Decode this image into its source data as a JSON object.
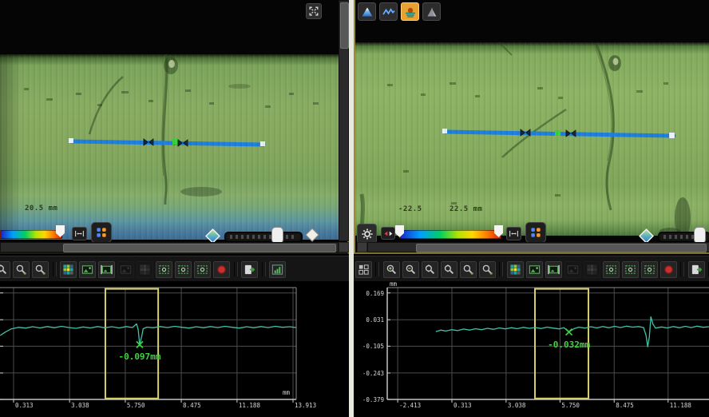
{
  "left_panel": {
    "scale_label": "20.5 mm",
    "viewer_controls": [
      "expand-view",
      "color-scale-handle",
      "range-fit",
      "palette",
      "height-marker",
      "opacity-slider",
      "compare-marker"
    ],
    "toolbar_icons": [
      "zoom-fit",
      "zoom-area",
      "zoom-area-alt",
      "pixel-view",
      "image-view",
      "image-fit",
      "overlay-disabled",
      "compare-disabled",
      "box-zoom",
      "box-zoom-in",
      "box-zoom-out",
      "record",
      "export",
      "profile-chart"
    ]
  },
  "right_panel": {
    "scale_min_label": "-22.5",
    "scale_max_label": "22.5 mm",
    "view_mode_icons": [
      "height-map",
      "profile-wave",
      "color-layers",
      "shape-3d"
    ],
    "active_view_mode": "color-layers",
    "viewer_controls": [
      "settings-gear",
      "swap-range",
      "color-scale-min-handle",
      "color-scale-max-handle",
      "range-fit",
      "palette",
      "height-marker",
      "opacity-slider"
    ],
    "toolbar_icons": [
      "tile-view",
      "zoom-in",
      "zoom-out",
      "zoom-fit",
      "zoom-fit-alt",
      "zoom-area",
      "zoom-area-alt",
      "pixel-view",
      "image-view",
      "image-fit",
      "overlay-disabled",
      "compare-disabled",
      "box-zoom",
      "box-zoom-in",
      "box-zoom-out",
      "record",
      "export",
      "profile-chart"
    ]
  },
  "chart_data": [
    {
      "id": "left_profile",
      "type": "line",
      "title": "",
      "xlabel": "mm",
      "ylabel": "mm",
      "unit": "mm",
      "unit_pos": "x-end",
      "xlim": [
        -0.3476,
        14.068
      ],
      "ylim": [
        -0.379,
        0.1965
      ],
      "grid": true,
      "frame": [
        "top",
        "bottom",
        "right"
      ],
      "x_ticks": {
        "values": [
          0.313,
          3.038,
          5.75,
          8.475,
          11.188,
          13.913
        ],
        "labels": [
          "0.313",
          "3.038",
          "5.750",
          "8.475",
          "11.188",
          "13.913"
        ]
      },
      "y_ticks": {
        "values": [
          0.169,
          0.031,
          -0.105,
          -0.243,
          -0.379
        ],
        "labels": []
      },
      "region": {
        "x0": 4.78,
        "x1": 7.35,
        "y0": -0.374,
        "y1": 0.19,
        "color": "#d6cf6a"
      },
      "marker": {
        "x": 6.45,
        "y": -0.097
      },
      "annotation": "-0.097mm",
      "series": [
        {
          "name": "height profile",
          "color": "#3fc3a8",
          "points": [
            [
              -0.34,
              -0.05
            ],
            [
              -0.1,
              -0.033
            ],
            [
              0.2,
              -0.016
            ],
            [
              0.55,
              -0.008
            ],
            [
              0.9,
              -0.012
            ],
            [
              1.25,
              -0.005
            ],
            [
              1.6,
              -0.011
            ],
            [
              1.95,
              -0.004
            ],
            [
              2.3,
              -0.01
            ],
            [
              2.65,
              -0.003
            ],
            [
              3.0,
              -0.009
            ],
            [
              3.35,
              -0.013
            ],
            [
              3.7,
              -0.006
            ],
            [
              4.05,
              -0.011
            ],
            [
              4.4,
              -0.004
            ],
            [
              4.75,
              -0.01
            ],
            [
              5.1,
              -0.005
            ],
            [
              5.45,
              -0.011
            ],
            [
              5.8,
              -0.004
            ],
            [
              6.1,
              -0.009
            ],
            [
              6.3,
              0.01
            ],
            [
              6.38,
              -0.02
            ],
            [
              6.45,
              -0.097
            ],
            [
              6.55,
              -0.055
            ],
            [
              6.62,
              -0.015
            ],
            [
              6.8,
              -0.007
            ],
            [
              7.1,
              -0.01
            ],
            [
              7.45,
              -0.004
            ],
            [
              7.8,
              -0.009
            ],
            [
              8.15,
              -0.003
            ],
            [
              8.5,
              -0.008
            ],
            [
              8.85,
              -0.012
            ],
            [
              9.2,
              -0.005
            ],
            [
              9.55,
              -0.01
            ],
            [
              9.9,
              -0.004
            ],
            [
              10.25,
              -0.009
            ],
            [
              10.6,
              -0.003
            ],
            [
              10.95,
              -0.008
            ],
            [
              11.3,
              -0.012
            ],
            [
              11.65,
              -0.005
            ],
            [
              12.0,
              -0.01
            ],
            [
              12.35,
              -0.004
            ],
            [
              12.7,
              -0.009
            ],
            [
              13.05,
              -0.003
            ],
            [
              13.4,
              -0.008
            ],
            [
              13.75,
              -0.005
            ],
            [
              14.05,
              -0.009
            ]
          ]
        }
      ]
    },
    {
      "id": "right_profile",
      "type": "line",
      "title": "",
      "xlabel": "mm",
      "ylabel": "mm",
      "unit": "mm",
      "unit_pos": "y-top",
      "xlim": [
        -2.94,
        13.245
      ],
      "ylim": [
        -0.379,
        0.1965
      ],
      "grid": true,
      "frame": [
        "top",
        "bottom",
        "left"
      ],
      "x_ticks": {
        "values": [
          -2.413,
          0.313,
          3.038,
          5.75,
          8.475,
          11.188
        ],
        "labels": [
          "-2.413",
          "0.313",
          "3.038",
          "5.750",
          "8.475",
          "11.188"
        ]
      },
      "y_ticks": {
        "values": [
          0.169,
          0.031,
          -0.105,
          -0.243,
          -0.379
        ],
        "labels": [
          "0.169",
          "0.031",
          "-0.105",
          "-0.243",
          "-0.379"
        ]
      },
      "region": {
        "x0": 4.49,
        "x1": 7.18,
        "y0": -0.374,
        "y1": 0.19,
        "color": "#d6cf6a"
      },
      "marker": {
        "x": 6.2,
        "y": -0.032
      },
      "annotation": "-0.032mm",
      "series": [
        {
          "name": "height profile",
          "color": "#3fc3a8",
          "points": [
            [
              -0.5,
              -0.03
            ],
            [
              -0.25,
              -0.022
            ],
            [
              0.0,
              -0.027
            ],
            [
              0.3,
              -0.02
            ],
            [
              0.6,
              -0.025
            ],
            [
              0.9,
              -0.017
            ],
            [
              1.2,
              -0.022
            ],
            [
              1.5,
              -0.015
            ],
            [
              1.8,
              -0.02
            ],
            [
              2.1,
              -0.013
            ],
            [
              2.4,
              -0.018
            ],
            [
              2.7,
              -0.011
            ],
            [
              3.0,
              -0.016
            ],
            [
              3.3,
              -0.01
            ],
            [
              3.6,
              -0.015
            ],
            [
              3.9,
              -0.008
            ],
            [
              4.2,
              -0.013
            ],
            [
              4.5,
              -0.009
            ],
            [
              4.8,
              -0.014
            ],
            [
              5.1,
              -0.007
            ],
            [
              5.4,
              -0.012
            ],
            [
              5.7,
              -0.016
            ],
            [
              5.95,
              -0.01
            ],
            [
              6.2,
              -0.032
            ],
            [
              6.45,
              -0.015
            ],
            [
              6.7,
              -0.007
            ],
            [
              7.0,
              -0.012
            ],
            [
              7.3,
              -0.005
            ],
            [
              7.6,
              -0.011
            ],
            [
              7.9,
              -0.004
            ],
            [
              8.2,
              -0.01
            ],
            [
              8.5,
              -0.003
            ],
            [
              8.8,
              -0.009
            ],
            [
              9.1,
              -0.002
            ],
            [
              9.4,
              -0.007
            ],
            [
              9.7,
              -0.004
            ],
            [
              9.95,
              -0.009
            ],
            [
              10.08,
              -0.05
            ],
            [
              10.16,
              -0.108
            ],
            [
              10.24,
              -0.06
            ],
            [
              10.32,
              0.046
            ],
            [
              10.42,
              0.01
            ],
            [
              10.55,
              -0.012
            ],
            [
              10.85,
              -0.006
            ],
            [
              11.15,
              -0.011
            ],
            [
              11.45,
              -0.004
            ],
            [
              11.75,
              -0.01
            ],
            [
              12.05,
              -0.003
            ],
            [
              12.35,
              -0.009
            ],
            [
              12.65,
              -0.002
            ],
            [
              12.95,
              -0.008
            ],
            [
              13.24,
              -0.005
            ]
          ]
        }
      ]
    }
  ]
}
